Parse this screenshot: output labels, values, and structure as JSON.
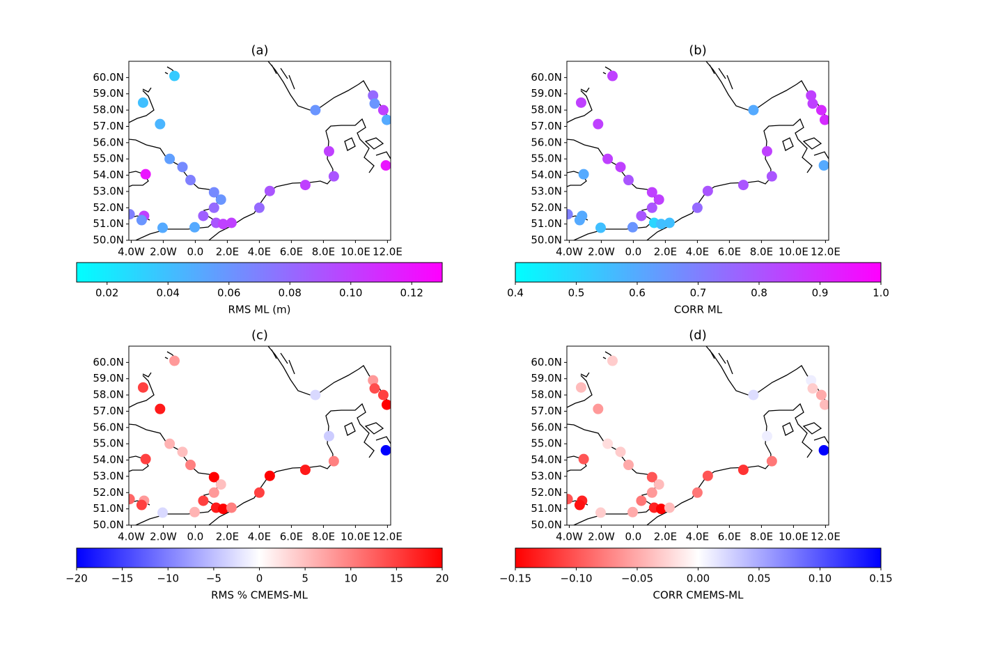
{
  "chart_data": [
    {
      "type": "scatter",
      "title": "(a)",
      "xlim": [
        -4.15,
        12.2
      ],
      "ylim": [
        50,
        61
      ],
      "xticks": [
        {
          "value": -4,
          "label": "4.0W"
        },
        {
          "value": -2,
          "label": "2.0W"
        },
        {
          "value": 0,
          "label": "0.0"
        },
        {
          "value": 2,
          "label": "2.0E"
        },
        {
          "value": 4,
          "label": "4.0E"
        },
        {
          "value": 6,
          "label": "6.0E"
        },
        {
          "value": 8,
          "label": "8.0E"
        },
        {
          "value": 10,
          "label": "10.0E"
        },
        {
          "value": 12,
          "label": "12.0E"
        }
      ],
      "yticks": [
        {
          "value": 50,
          "label": "50.0N"
        },
        {
          "value": 51,
          "label": "51.0N"
        },
        {
          "value": 52,
          "label": "52.0N"
        },
        {
          "value": 53,
          "label": "53.0N"
        },
        {
          "value": 54,
          "label": "54.0N"
        },
        {
          "value": 55,
          "label": "55.0N"
        },
        {
          "value": 56,
          "label": "56.0N"
        },
        {
          "value": 57,
          "label": "57.0N"
        },
        {
          "value": 58,
          "label": "58.0N"
        },
        {
          "value": 59,
          "label": "59.0N"
        },
        {
          "value": 60,
          "label": "60.0N"
        }
      ],
      "x": [
        -1.3,
        -3.26,
        -2.2,
        -1.6,
        -0.8,
        -0.3,
        -3.1,
        1.17,
        1.6,
        1.17,
        0.5,
        1.3,
        1.74,
        2.26,
        -4.1,
        -3.2,
        -3.35,
        -2.04,
        -0.04,
        4.0,
        4.65,
        6.87,
        8.65,
        8.35,
        7.5,
        11.1,
        11.2,
        11.74,
        11.96,
        11.9
      ],
      "y": [
        60.1,
        58.46,
        57.14,
        55.0,
        54.5,
        53.7,
        54.06,
        52.95,
        52.5,
        52.0,
        51.5,
        51.07,
        51.0,
        51.07,
        51.6,
        51.5,
        51.24,
        50.77,
        50.8,
        52.0,
        53.03,
        53.4,
        53.93,
        55.47,
        58.0,
        58.9,
        58.4,
        58.0,
        57.4,
        54.6
      ],
      "values": [
        0.035,
        0.04,
        0.045,
        0.055,
        0.065,
        0.07,
        0.12,
        0.065,
        0.06,
        0.08,
        0.085,
        0.09,
        0.1,
        0.1,
        0.07,
        0.1,
        0.06,
        0.05,
        0.05,
        0.08,
        0.09,
        0.1,
        0.09,
        0.1,
        0.06,
        0.08,
        0.06,
        0.1,
        0.05,
        0.12
      ],
      "colorbar": {
        "label": "RMS ML (m)",
        "clim": [
          0.01,
          0.13
        ],
        "colormap": [
          "#00ffff",
          "#ff00ff"
        ],
        "ticks": [
          0.02,
          0.04,
          0.06,
          0.08,
          {
            "value": 0.1,
            "label": "0.10"
          },
          0.12
        ]
      }
    },
    {
      "type": "scatter",
      "title": "(b)",
      "xlim": [
        -4.15,
        12.2
      ],
      "ylim": [
        50,
        61
      ],
      "xticks": [
        {
          "value": -4,
          "label": "4.0W"
        },
        {
          "value": -2,
          "label": "2.0W"
        },
        {
          "value": 0,
          "label": "0.0"
        },
        {
          "value": 2,
          "label": "2.0E"
        },
        {
          "value": 4,
          "label": "4.0E"
        },
        {
          "value": 6,
          "label": "6.0E"
        },
        {
          "value": 8,
          "label": "8.0E"
        },
        {
          "value": 10,
          "label": "10.0E"
        },
        {
          "value": 12,
          "label": "12.0E"
        }
      ],
      "yticks": [
        {
          "value": 50,
          "label": "50.0N"
        },
        {
          "value": 51,
          "label": "51.0N"
        },
        {
          "value": 52,
          "label": "52.0N"
        },
        {
          "value": 53,
          "label": "53.0N"
        },
        {
          "value": 54,
          "label": "54.0N"
        },
        {
          "value": 55,
          "label": "55.0N"
        },
        {
          "value": 56,
          "label": "56.0N"
        },
        {
          "value": 57,
          "label": "57.0N"
        },
        {
          "value": 58,
          "label": "58.0N"
        },
        {
          "value": 59,
          "label": "59.0N"
        },
        {
          "value": 60,
          "label": "60.0N"
        }
      ],
      "x": [
        -1.3,
        -3.26,
        -2.2,
        -1.6,
        -0.8,
        -0.3,
        -3.1,
        1.17,
        1.6,
        1.17,
        0.5,
        1.3,
        1.74,
        2.26,
        -4.1,
        -3.2,
        -3.35,
        -2.04,
        -0.04,
        4.0,
        4.65,
        6.87,
        8.65,
        8.35,
        7.5,
        11.1,
        11.2,
        11.74,
        11.96,
        11.9
      ],
      "y": [
        60.1,
        58.46,
        57.14,
        55.0,
        54.5,
        53.7,
        54.06,
        52.95,
        52.5,
        52.0,
        51.5,
        51.07,
        51.0,
        51.07,
        51.6,
        51.5,
        51.24,
        50.77,
        50.8,
        52.0,
        53.03,
        53.4,
        53.93,
        55.47,
        58.0,
        58.9,
        58.4,
        58.0,
        57.4,
        54.6
      ],
      "values": [
        0.85,
        0.85,
        0.85,
        0.85,
        0.85,
        0.8,
        0.6,
        0.85,
        0.85,
        0.8,
        0.8,
        0.5,
        0.55,
        0.55,
        0.7,
        0.6,
        0.6,
        0.55,
        0.65,
        0.75,
        0.8,
        0.8,
        0.8,
        0.85,
        0.6,
        0.85,
        0.85,
        0.9,
        0.9,
        0.6
      ],
      "colorbar": {
        "label": "CORR ML",
        "clim": [
          0.4,
          1.0
        ],
        "colormap": [
          "#00ffff",
          "#ff00ff"
        ],
        "ticks": [
          0.4,
          0.5,
          0.6,
          0.7,
          0.8,
          0.9,
          {
            "value": 1.0,
            "label": "1.0"
          }
        ]
      }
    },
    {
      "type": "scatter",
      "title": "(c)",
      "xlim": [
        -4.15,
        12.2
      ],
      "ylim": [
        50,
        61
      ],
      "xticks": [
        {
          "value": -4,
          "label": "4.0W"
        },
        {
          "value": -2,
          "label": "2.0W"
        },
        {
          "value": 0,
          "label": "0.0"
        },
        {
          "value": 2,
          "label": "2.0E"
        },
        {
          "value": 4,
          "label": "4.0E"
        },
        {
          "value": 6,
          "label": "6.0E"
        },
        {
          "value": 8,
          "label": "8.0E"
        },
        {
          "value": 10,
          "label": "10.0E"
        },
        {
          "value": 12,
          "label": "12.0E"
        }
      ],
      "yticks": [
        {
          "value": 50,
          "label": "50.0N"
        },
        {
          "value": 51,
          "label": "51.0N"
        },
        {
          "value": 52,
          "label": "52.0N"
        },
        {
          "value": 53,
          "label": "53.0N"
        },
        {
          "value": 54,
          "label": "54.0N"
        },
        {
          "value": 55,
          "label": "55.0N"
        },
        {
          "value": 56,
          "label": "56.0N"
        },
        {
          "value": 57,
          "label": "57.0N"
        },
        {
          "value": 58,
          "label": "58.0N"
        },
        {
          "value": 59,
          "label": "59.0N"
        },
        {
          "value": 60,
          "label": "60.0N"
        }
      ],
      "x": [
        -1.3,
        -3.26,
        -2.2,
        -1.6,
        -0.8,
        -0.3,
        -3.1,
        1.17,
        1.6,
        1.17,
        0.5,
        1.3,
        1.74,
        2.26,
        -4.1,
        -3.2,
        -3.35,
        -2.04,
        -0.04,
        4.0,
        4.65,
        6.87,
        8.65,
        8.35,
        7.5,
        11.1,
        11.2,
        11.74,
        11.96,
        11.9
      ],
      "y": [
        60.1,
        58.46,
        57.14,
        55.0,
        54.5,
        53.7,
        54.06,
        52.95,
        52.5,
        52.0,
        51.5,
        51.07,
        51.0,
        51.07,
        51.6,
        51.5,
        51.24,
        50.77,
        50.8,
        52.0,
        53.03,
        53.4,
        53.93,
        55.47,
        58.0,
        58.9,
        58.4,
        58.0,
        57.4,
        54.6
      ],
      "values": [
        8,
        15,
        18,
        6,
        5,
        10,
        15,
        20,
        5,
        8,
        15,
        18,
        20,
        10,
        12,
        8,
        15,
        -3,
        6,
        15,
        20,
        18,
        10,
        -4,
        -3,
        8,
        14,
        15,
        20,
        -20
      ],
      "colorbar": {
        "label": "RMS % CMEMS-ML",
        "clim": [
          -20,
          20
        ],
        "colormap": [
          "#0000ff",
          "#ffffff",
          "#ff0000"
        ],
        "ticks": [
          {
            "value": -20,
            "label": "−20"
          },
          {
            "value": -15,
            "label": "−15"
          },
          {
            "value": -10,
            "label": "−10"
          },
          {
            "value": -5,
            "label": "−5"
          },
          0,
          5,
          10,
          15,
          20
        ]
      }
    },
    {
      "type": "scatter",
      "title": "(d)",
      "xlim": [
        -4.15,
        12.2
      ],
      "ylim": [
        50,
        61
      ],
      "xticks": [
        {
          "value": -4,
          "label": "4.0W"
        },
        {
          "value": -2,
          "label": "2.0W"
        },
        {
          "value": 0,
          "label": "0.0"
        },
        {
          "value": 2,
          "label": "2.0E"
        },
        {
          "value": 4,
          "label": "4.0E"
        },
        {
          "value": 6,
          "label": "6.0E"
        },
        {
          "value": 8,
          "label": "8.0E"
        },
        {
          "value": 10,
          "label": "10.0E"
        },
        {
          "value": 12,
          "label": "12.0E"
        }
      ],
      "yticks": [
        {
          "value": 50,
          "label": "50.0N"
        },
        {
          "value": 51,
          "label": "51.0N"
        },
        {
          "value": 52,
          "label": "52.0N"
        },
        {
          "value": 53,
          "label": "53.0N"
        },
        {
          "value": 54,
          "label": "54.0N"
        },
        {
          "value": 55,
          "label": "55.0N"
        },
        {
          "value": 56,
          "label": "56.0N"
        },
        {
          "value": 57,
          "label": "57.0N"
        },
        {
          "value": 58,
          "label": "58.0N"
        },
        {
          "value": 59,
          "label": "59.0N"
        },
        {
          "value": 60,
          "label": "60.0N"
        }
      ],
      "x": [
        -1.3,
        -3.26,
        -2.2,
        -1.6,
        -0.8,
        -0.3,
        -3.1,
        1.17,
        1.6,
        1.17,
        0.5,
        1.3,
        1.74,
        2.26,
        -4.1,
        -3.2,
        -3.35,
        -2.04,
        -0.04,
        4.0,
        4.65,
        6.87,
        8.65,
        8.35,
        7.5,
        11.1,
        11.2,
        11.74,
        11.96,
        11.9
      ],
      "y": [
        60.1,
        58.46,
        57.14,
        55.0,
        54.5,
        53.7,
        54.06,
        52.95,
        52.5,
        52.0,
        51.5,
        51.07,
        51.0,
        51.07,
        51.6,
        51.5,
        51.24,
        50.77,
        50.8,
        52.0,
        53.03,
        53.4,
        53.93,
        55.47,
        58.0,
        58.9,
        58.4,
        58.0,
        57.4,
        54.6
      ],
      "values": [
        -0.03,
        -0.04,
        -0.06,
        -0.02,
        -0.03,
        -0.05,
        -0.1,
        -0.1,
        -0.04,
        -0.06,
        -0.08,
        -0.13,
        -0.15,
        -0.04,
        -0.1,
        -0.13,
        -0.14,
        -0.03,
        -0.05,
        -0.08,
        -0.1,
        -0.12,
        -0.08,
        0.01,
        0.02,
        0.01,
        -0.03,
        -0.05,
        -0.04,
        0.15
      ],
      "colorbar": {
        "label": "CORR CMEMS-ML",
        "clim": [
          -0.15,
          0.15
        ],
        "colormap": [
          "#ff0000",
          "#ffffff",
          "#0000ff"
        ],
        "ticks": [
          {
            "value": -0.15,
            "label": "−0.15"
          },
          {
            "value": -0.1,
            "label": "−0.10"
          },
          {
            "value": -0.05,
            "label": "−0.05"
          },
          {
            "value": 0,
            "label": "0.00"
          },
          0.05,
          {
            "value": 0.1,
            "label": "0.10"
          },
          0.15
        ]
      }
    }
  ]
}
